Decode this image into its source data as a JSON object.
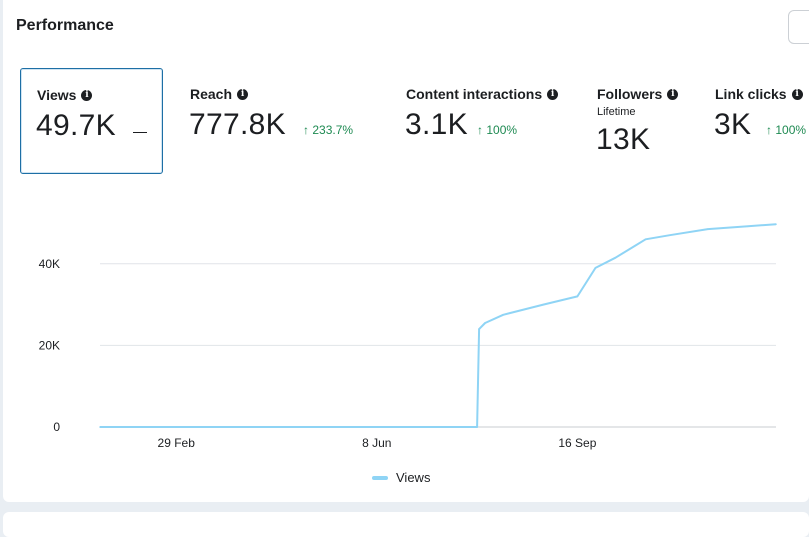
{
  "header": {
    "title": "Performance"
  },
  "metrics": [
    {
      "label": "Views",
      "value": "49.7K",
      "delta": "—",
      "selected": true
    },
    {
      "label": "Reach",
      "value": "777.8K",
      "delta": "233.7%"
    },
    {
      "label": "Content interactions",
      "value": "3.1K",
      "delta": "100%"
    },
    {
      "label": "Followers",
      "sublabel": "Lifetime",
      "value": "13K"
    },
    {
      "label": "Link clicks",
      "value": "3K",
      "delta": "100%"
    }
  ],
  "colors": {
    "series": "#8fd4f5",
    "positive": "#1e8a52",
    "selected_border": "#1d6fa5"
  },
  "chart_data": {
    "type": "area",
    "series": [
      {
        "name": "Views",
        "x": [
          "22 Jan",
          "29 Feb",
          "8 Apr",
          "8 Jun",
          "28 Jul",
          "29 Jul",
          "1 Aug",
          "10 Aug",
          "30 Aug",
          "16 Sep",
          "25 Sep",
          "5 Oct",
          "20 Oct",
          "1 Nov",
          "20 Nov",
          "10 Dec",
          "24 Dec"
        ],
        "values": [
          0,
          0,
          0,
          0,
          0,
          24000,
          25500,
          27500,
          30000,
          32000,
          39000,
          41500,
          46000,
          47000,
          48500,
          49200,
          49700
        ]
      }
    ],
    "x_ticks": [
      "29 Feb",
      "8 Jun",
      "16 Sep"
    ],
    "y_ticks": [
      0,
      20000,
      40000
    ],
    "y_tick_labels": [
      "0",
      "20K",
      "40K"
    ],
    "ylim": [
      0,
      50000
    ],
    "grid": true,
    "legend": "bottom-center"
  }
}
